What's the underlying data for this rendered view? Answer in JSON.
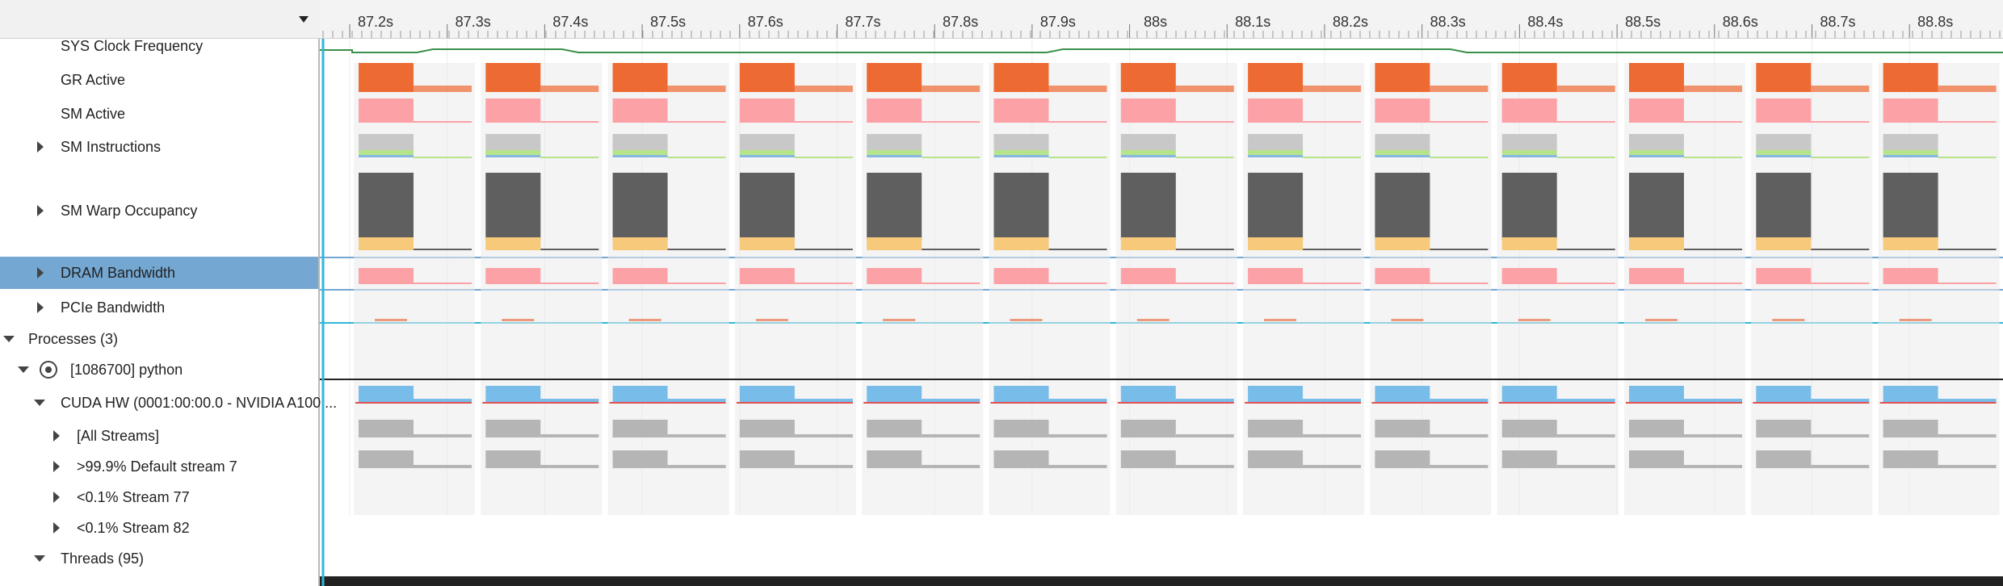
{
  "timeline": {
    "tick_labels": [
      "87.2s",
      "87.3s",
      "87.4s",
      "87.5s",
      "87.6s",
      "87.7s",
      "87.8s",
      "87.9s",
      "88s",
      "88.1s",
      "88.2s",
      "88.3s",
      "88.4s",
      "88.5s",
      "88.6s",
      "88.7s",
      "88.8s"
    ],
    "pulse_starts": [
      0.02,
      0.095,
      0.17,
      0.247,
      0.322,
      0.398,
      0.472,
      0.548,
      0.621,
      0.696,
      0.777,
      0.853,
      0.927,
      1.002,
      1.078,
      1.152,
      1.225
    ],
    "colors": {
      "clock": "#3a8f4a",
      "gr_active": "#ee6a33",
      "sm_active": "#fca1a6",
      "sm_instructions_gray": "#c8c8c8",
      "sm_instructions_green": "#b6e48a",
      "sm_instructions_blue": "#86b7e0",
      "warp_dark": "#5f5f5f",
      "warp_yellow": "#f7c97a",
      "dram": "#fca1a6",
      "cuda_blue": "#78bde9",
      "kernel_gray": "#b5b5b5",
      "background_band": "#ebebeb",
      "selection": "#74a7d2",
      "cursor": "#2fb7d8"
    }
  },
  "rows": [
    {
      "label": "SYS Clock Frequency",
      "expander": "none"
    },
    {
      "label": "GR Active",
      "expander": "none"
    },
    {
      "label": "SM Active",
      "expander": "none"
    },
    {
      "label": "SM Instructions",
      "expander": "collapsed"
    },
    {
      "label": "SM Warp Occupancy",
      "expander": "collapsed"
    },
    {
      "label": "DRAM Bandwidth",
      "expander": "collapsed",
      "selected": true
    },
    {
      "label": "PCIe Bandwidth",
      "expander": "collapsed"
    },
    {
      "label": "Processes (3)",
      "expander": "expanded"
    },
    {
      "label": "[1086700] python",
      "expander": "expanded"
    },
    {
      "label": "CUDA HW (0001:00:00.0 - NVIDIA A100 ...",
      "expander": "expanded"
    },
    {
      "label": "[All Streams]",
      "expander": "collapsed"
    },
    {
      "label": ">99.9% Default stream 7",
      "expander": "collapsed"
    },
    {
      "label": "<0.1% Stream 77",
      "expander": "collapsed"
    },
    {
      "label": "<0.1% Stream 82",
      "expander": "collapsed"
    },
    {
      "label": "Threads (95)",
      "expander": "expanded"
    }
  ]
}
